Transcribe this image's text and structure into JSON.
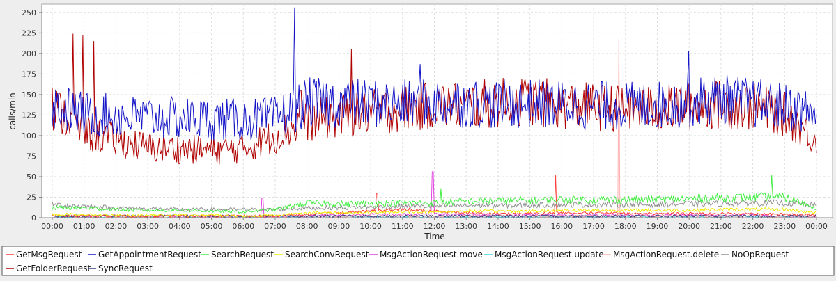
{
  "chart_data": {
    "type": "line",
    "title": "",
    "xlabel": "Time",
    "ylabel": "calls/min",
    "ylim": [
      0,
      260
    ],
    "yticks": [
      0,
      25,
      50,
      75,
      100,
      125,
      150,
      175,
      200,
      225,
      250
    ],
    "xlim": [
      0,
      24
    ],
    "x": [
      "00:00",
      "01:00",
      "02:00",
      "03:00",
      "04:00",
      "05:00",
      "06:00",
      "07:00",
      "08:00",
      "09:00",
      "10:00",
      "11:00",
      "12:00",
      "13:00",
      "14:00",
      "15:00",
      "16:00",
      "17:00",
      "18:00",
      "19:00",
      "20:00",
      "21:00",
      "22:00",
      "23:00",
      "00:00"
    ],
    "grid": true,
    "legend_position": "bottom",
    "series": [
      {
        "name": "GetMsgRequest",
        "color": "#ff4040",
        "values": [
          3,
          2,
          2,
          2,
          2,
          2,
          2,
          2,
          4,
          6,
          8,
          10,
          8,
          6,
          5,
          5,
          6,
          6,
          5,
          5,
          5,
          5,
          5,
          4,
          3
        ],
        "spikes": [
          {
            "x": 10.2,
            "y": 30
          },
          {
            "x": 15.8,
            "y": 52
          }
        ]
      },
      {
        "name": "GetAppointmentRequest",
        "color": "#1515c8",
        "values": [
          137,
          126,
          124,
          122,
          121,
          120,
          119,
          121,
          140,
          140,
          139,
          138,
          139,
          140,
          138,
          139,
          138,
          137,
          136,
          137,
          140,
          145,
          140,
          135,
          128
        ],
        "spikes": [
          {
            "x": 7.6,
            "y": 256
          },
          {
            "x": 19.98,
            "y": 203
          },
          {
            "x": 11.55,
            "y": 187
          }
        ]
      },
      {
        "name": "SearchRequest",
        "color": "#44ee44",
        "values": [
          12,
          12,
          10,
          9,
          9,
          8,
          7,
          10,
          18,
          17,
          17,
          18,
          18,
          20,
          21,
          21,
          22,
          22,
          22,
          22,
          23,
          24,
          25,
          25,
          12
        ],
        "spikes": [
          {
            "x": 22.6,
            "y": 52
          },
          {
            "x": 12.2,
            "y": 35
          }
        ]
      },
      {
        "name": "SearchConvRequest",
        "color": "#eeee00",
        "values": [
          4,
          4,
          3,
          3,
          3,
          3,
          2,
          3,
          6,
          6,
          6,
          7,
          7,
          8,
          8,
          8,
          9,
          9,
          9,
          9,
          9,
          10,
          10,
          10,
          6
        ],
        "spikes": []
      },
      {
        "name": "MsgActionRequest.move",
        "color": "#e040e0",
        "values": [
          0,
          0,
          0,
          0,
          0,
          0,
          0,
          1,
          2,
          3,
          4,
          4,
          4,
          4,
          3,
          3,
          3,
          3,
          3,
          3,
          3,
          3,
          3,
          2,
          1
        ],
        "spikes": [
          {
            "x": 6.6,
            "y": 24
          },
          {
            "x": 11.95,
            "y": 56
          }
        ]
      },
      {
        "name": "MsgActionRequest.update",
        "color": "#40d8e8",
        "values": [
          0,
          0,
          0,
          0,
          0,
          0,
          0,
          0,
          1,
          1,
          1,
          1,
          1,
          1,
          1,
          1,
          1,
          1,
          1,
          1,
          1,
          1,
          1,
          1,
          0
        ],
        "spikes": []
      },
      {
        "name": "MsgActionRequest.delete",
        "color": "#ffb0b0",
        "values": [
          0,
          0,
          0,
          0,
          0,
          0,
          0,
          0,
          1,
          1,
          2,
          2,
          2,
          2,
          2,
          2,
          2,
          2,
          2,
          2,
          2,
          2,
          2,
          1,
          1
        ],
        "spikes": [
          {
            "x": 17.8,
            "y": 218
          }
        ]
      },
      {
        "name": "NoOpRequest",
        "color": "#909090",
        "values": [
          16,
          14,
          12,
          11,
          10,
          10,
          10,
          10,
          12,
          12,
          13,
          14,
          14,
          15,
          15,
          15,
          16,
          16,
          16,
          16,
          17,
          17,
          18,
          18,
          15
        ],
        "spikes": []
      },
      {
        "name": "GetFolderRequest",
        "color": "#b00000",
        "values": [
          135,
          104,
          95,
          85,
          84,
          82,
          84,
          100,
          118,
          123,
          128,
          133,
          137,
          136,
          140,
          142,
          137,
          135,
          133,
          132,
          137,
          138,
          135,
          126,
          95
        ],
        "spikes": [
          {
            "x": 0.65,
            "y": 224
          },
          {
            "x": 0.95,
            "y": 222
          },
          {
            "x": 1.3,
            "y": 215
          },
          {
            "x": 7.8,
            "y": 155
          },
          {
            "x": 9.4,
            "y": 205
          }
        ]
      },
      {
        "name": "SyncRequest",
        "color": "#404080",
        "values": [
          2,
          2,
          2,
          2,
          2,
          2,
          2,
          2,
          2,
          2,
          2,
          2,
          2,
          2,
          2,
          2,
          2,
          2,
          2,
          2,
          2,
          2,
          2,
          2,
          2
        ],
        "spikes": []
      }
    ]
  }
}
